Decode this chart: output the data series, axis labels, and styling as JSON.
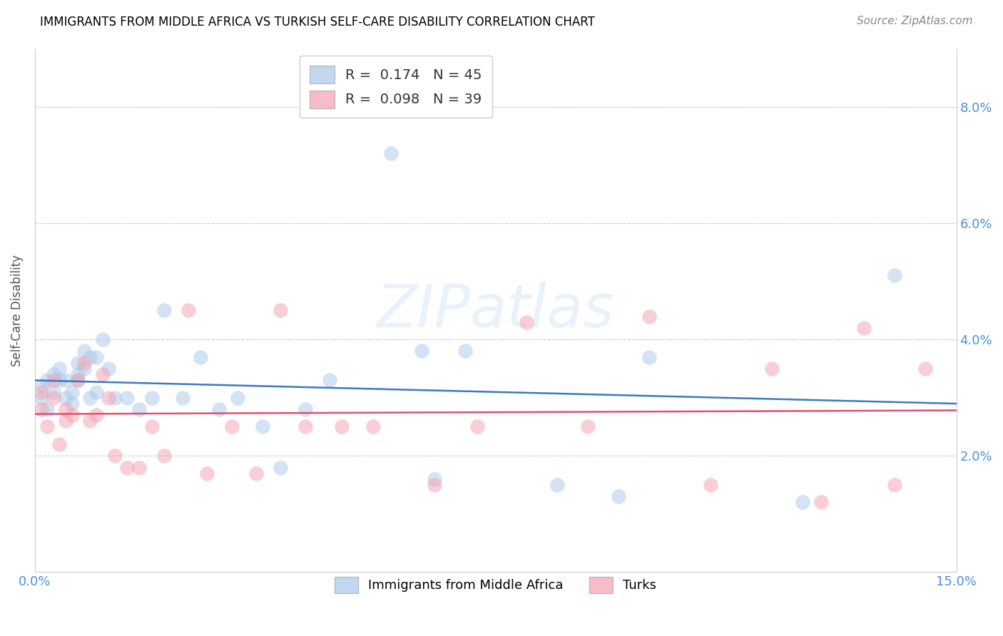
{
  "title": "IMMIGRANTS FROM MIDDLE AFRICA VS TURKISH SELF-CARE DISABILITY CORRELATION CHART",
  "source": "Source: ZipAtlas.com",
  "ylabel_label": "Self-Care Disability",
  "xlim": [
    0.0,
    0.15
  ],
  "ylim": [
    0.0,
    0.09
  ],
  "xticks": [
    0.0,
    0.03,
    0.06,
    0.09,
    0.12,
    0.15
  ],
  "yticks": [
    0.0,
    0.02,
    0.04,
    0.06,
    0.08
  ],
  "xtick_labels_show": [
    "0.0%",
    "",
    "",
    "",
    "",
    "15.0%"
  ],
  "ytick_labels_show": [
    "",
    "2.0%",
    "4.0%",
    "6.0%",
    "8.0%"
  ],
  "blue_R": 0.174,
  "blue_N": 45,
  "pink_R": 0.098,
  "pink_N": 39,
  "blue_color": "#a8c8e8",
  "pink_color": "#f4a0b0",
  "blue_line_color": "#3a7abf",
  "pink_line_color": "#e05070",
  "tick_color": "#4a90d9",
  "legend1_label": "Immigrants from Middle Africa",
  "legend2_label": "Turks",
  "blue_x": [
    0.001,
    0.001,
    0.002,
    0.002,
    0.003,
    0.003,
    0.004,
    0.004,
    0.005,
    0.005,
    0.006,
    0.006,
    0.007,
    0.007,
    0.007,
    0.008,
    0.008,
    0.009,
    0.009,
    0.01,
    0.01,
    0.011,
    0.012,
    0.013,
    0.015,
    0.017,
    0.019,
    0.021,
    0.024,
    0.027,
    0.03,
    0.033,
    0.037,
    0.04,
    0.044,
    0.048,
    0.058,
    0.063,
    0.065,
    0.07,
    0.085,
    0.095,
    0.1,
    0.125,
    0.14
  ],
  "blue_y": [
    0.03,
    0.032,
    0.028,
    0.033,
    0.031,
    0.034,
    0.033,
    0.035,
    0.03,
    0.033,
    0.029,
    0.031,
    0.034,
    0.033,
    0.036,
    0.035,
    0.038,
    0.03,
    0.037,
    0.031,
    0.037,
    0.04,
    0.035,
    0.03,
    0.03,
    0.028,
    0.03,
    0.045,
    0.03,
    0.037,
    0.028,
    0.03,
    0.025,
    0.018,
    0.028,
    0.033,
    0.072,
    0.038,
    0.016,
    0.038,
    0.015,
    0.013,
    0.037,
    0.012,
    0.051
  ],
  "pink_x": [
    0.001,
    0.001,
    0.002,
    0.003,
    0.003,
    0.004,
    0.005,
    0.005,
    0.006,
    0.007,
    0.008,
    0.009,
    0.01,
    0.011,
    0.012,
    0.013,
    0.015,
    0.017,
    0.019,
    0.021,
    0.025,
    0.028,
    0.032,
    0.036,
    0.04,
    0.044,
    0.05,
    0.055,
    0.065,
    0.072,
    0.08,
    0.09,
    0.1,
    0.11,
    0.12,
    0.128,
    0.135,
    0.14,
    0.145
  ],
  "pink_y": [
    0.028,
    0.031,
    0.025,
    0.03,
    0.033,
    0.022,
    0.026,
    0.028,
    0.027,
    0.033,
    0.036,
    0.026,
    0.027,
    0.034,
    0.03,
    0.02,
    0.018,
    0.018,
    0.025,
    0.02,
    0.045,
    0.017,
    0.025,
    0.017,
    0.045,
    0.025,
    0.025,
    0.025,
    0.015,
    0.025,
    0.043,
    0.025,
    0.044,
    0.015,
    0.035,
    0.012,
    0.042,
    0.015,
    0.035
  ]
}
